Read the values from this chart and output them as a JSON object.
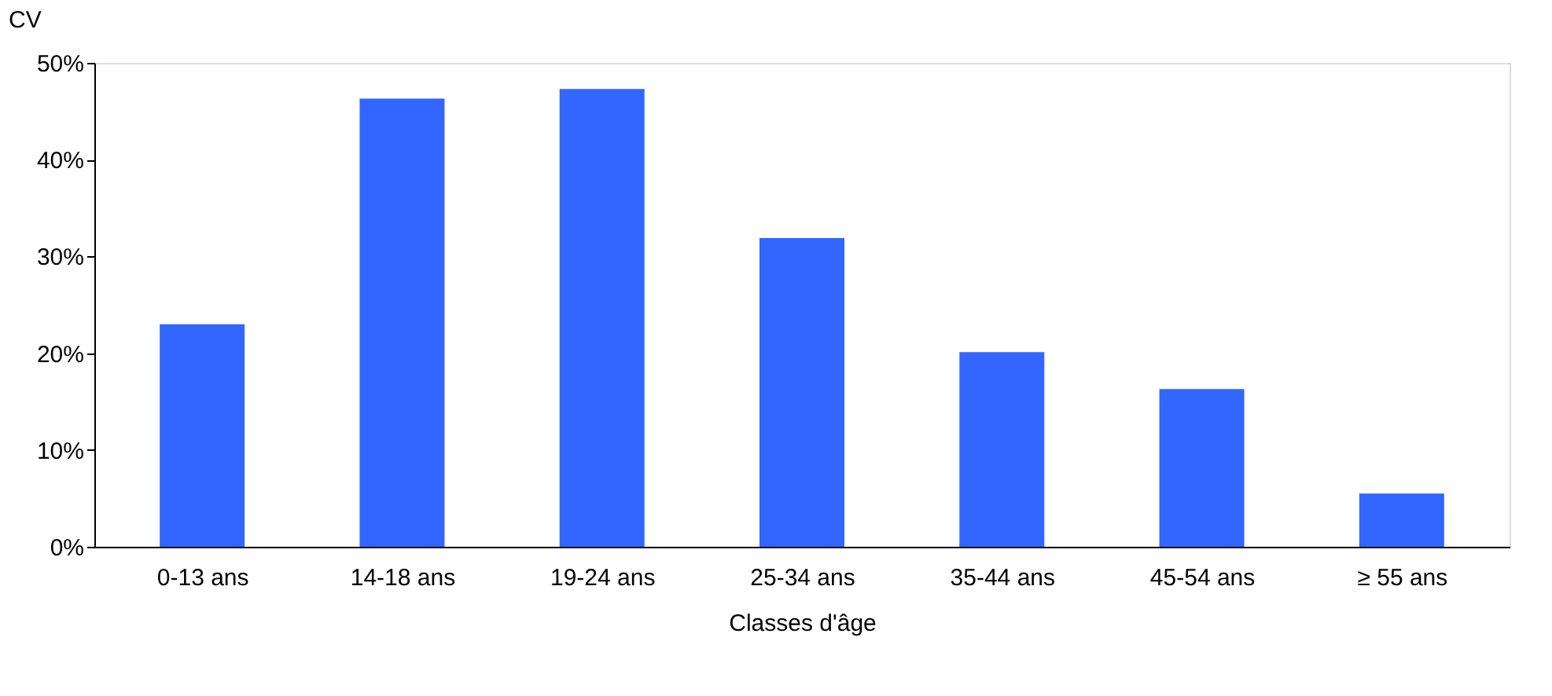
{
  "chart_data": {
    "type": "bar",
    "ylabel": "CV",
    "xlabel": "Classes d'âge",
    "categories": [
      "0-13 ans",
      "14-18 ans",
      "19-24 ans",
      "25-34 ans",
      "35-44 ans",
      "45-54 ans",
      "≥ 55 ans"
    ],
    "values": [
      23.0,
      46.3,
      47.3,
      31.9,
      20.1,
      16.3,
      5.5
    ],
    "color": "#3366ff",
    "ylim": [
      0,
      50
    ],
    "yticks": [
      {
        "value": 0,
        "label": "0%"
      },
      {
        "value": 10,
        "label": "10%"
      },
      {
        "value": 20,
        "label": "20%"
      },
      {
        "value": 30,
        "label": "30%"
      },
      {
        "value": 40,
        "label": "40%"
      },
      {
        "value": 50,
        "label": "50%"
      }
    ],
    "grid": false
  }
}
